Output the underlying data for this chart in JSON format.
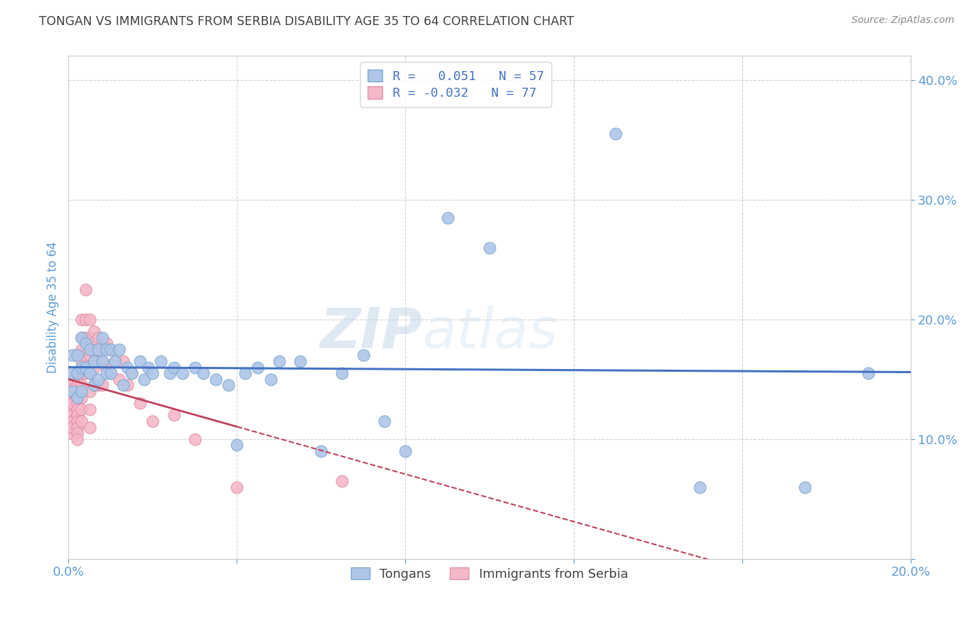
{
  "title": "TONGAN VS IMMIGRANTS FROM SERBIA DISABILITY AGE 35 TO 64 CORRELATION CHART",
  "source": "Source: ZipAtlas.com",
  "ylabel": "Disability Age 35 to 64",
  "xlim": [
    0.0,
    0.2
  ],
  "ylim": [
    0.0,
    0.42
  ],
  "xticks": [
    0.0,
    0.04,
    0.08,
    0.12,
    0.16,
    0.2
  ],
  "yticks": [
    0.0,
    0.1,
    0.2,
    0.3,
    0.4
  ],
  "ytick_labels": [
    "",
    "10.0%",
    "20.0%",
    "30.0%",
    "40.0%"
  ],
  "xtick_labels": [
    "0.0%",
    "",
    "",
    "",
    "",
    "20.0%"
  ],
  "legend_entries": [
    {
      "label": "R =   0.051   N = 57",
      "color": "#aec6e8"
    },
    {
      "label": "R = -0.032   N = 77",
      "color": "#f4b8c8"
    }
  ],
  "bottom_legend": [
    "Tongans",
    "Immigrants from Serbia"
  ],
  "watermark": "ZIPatlas",
  "blue_scatter_x": [
    0.001,
    0.001,
    0.001,
    0.002,
    0.002,
    0.002,
    0.003,
    0.003,
    0.003,
    0.004,
    0.004,
    0.005,
    0.005,
    0.006,
    0.006,
    0.007,
    0.007,
    0.008,
    0.008,
    0.009,
    0.009,
    0.01,
    0.01,
    0.011,
    0.012,
    0.013,
    0.014,
    0.015,
    0.017,
    0.018,
    0.019,
    0.02,
    0.022,
    0.024,
    0.025,
    0.027,
    0.03,
    0.032,
    0.035,
    0.038,
    0.04,
    0.042,
    0.045,
    0.048,
    0.05,
    0.055,
    0.06,
    0.065,
    0.07,
    0.075,
    0.08,
    0.09,
    0.1,
    0.13,
    0.15,
    0.175,
    0.19
  ],
  "blue_scatter_y": [
    0.14,
    0.155,
    0.17,
    0.135,
    0.155,
    0.17,
    0.14,
    0.16,
    0.185,
    0.16,
    0.18,
    0.155,
    0.175,
    0.145,
    0.165,
    0.15,
    0.175,
    0.165,
    0.185,
    0.155,
    0.175,
    0.155,
    0.175,
    0.165,
    0.175,
    0.145,
    0.16,
    0.155,
    0.165,
    0.15,
    0.16,
    0.155,
    0.165,
    0.155,
    0.16,
    0.155,
    0.16,
    0.155,
    0.15,
    0.145,
    0.095,
    0.155,
    0.16,
    0.15,
    0.165,
    0.165,
    0.09,
    0.155,
    0.17,
    0.115,
    0.09,
    0.285,
    0.26,
    0.355,
    0.06,
    0.06,
    0.155
  ],
  "pink_scatter_x": [
    0.0,
    0.0,
    0.0,
    0.0,
    0.0,
    0.0,
    0.0,
    0.001,
    0.001,
    0.001,
    0.001,
    0.001,
    0.001,
    0.001,
    0.001,
    0.001,
    0.001,
    0.001,
    0.001,
    0.002,
    0.002,
    0.002,
    0.002,
    0.002,
    0.002,
    0.002,
    0.002,
    0.002,
    0.002,
    0.002,
    0.002,
    0.003,
    0.003,
    0.003,
    0.003,
    0.003,
    0.003,
    0.003,
    0.003,
    0.003,
    0.004,
    0.004,
    0.004,
    0.004,
    0.004,
    0.005,
    0.005,
    0.005,
    0.005,
    0.005,
    0.005,
    0.005,
    0.006,
    0.006,
    0.006,
    0.006,
    0.007,
    0.007,
    0.007,
    0.008,
    0.008,
    0.008,
    0.009,
    0.009,
    0.01,
    0.01,
    0.011,
    0.012,
    0.013,
    0.014,
    0.015,
    0.017,
    0.02,
    0.025,
    0.03,
    0.04,
    0.065
  ],
  "pink_scatter_y": [
    0.13,
    0.135,
    0.125,
    0.12,
    0.115,
    0.11,
    0.105,
    0.145,
    0.14,
    0.135,
    0.13,
    0.125,
    0.12,
    0.115,
    0.11,
    0.13,
    0.14,
    0.145,
    0.15,
    0.155,
    0.15,
    0.145,
    0.14,
    0.135,
    0.13,
    0.125,
    0.12,
    0.115,
    0.11,
    0.105,
    0.1,
    0.2,
    0.185,
    0.175,
    0.165,
    0.155,
    0.145,
    0.135,
    0.125,
    0.115,
    0.225,
    0.2,
    0.185,
    0.17,
    0.155,
    0.2,
    0.185,
    0.17,
    0.155,
    0.14,
    0.125,
    0.11,
    0.19,
    0.175,
    0.16,
    0.145,
    0.185,
    0.165,
    0.145,
    0.18,
    0.165,
    0.145,
    0.18,
    0.16,
    0.175,
    0.155,
    0.165,
    0.15,
    0.165,
    0.145,
    0.155,
    0.13,
    0.115,
    0.12,
    0.1,
    0.06,
    0.065
  ],
  "blue_line_color": "#4472c4",
  "pink_line_color": "#c0405a",
  "scatter_blue_color": "#aec6e8",
  "scatter_pink_color": "#f4b8c8",
  "scatter_blue_edge": "#7aa8d0",
  "scatter_pink_edge": "#e090a8",
  "background_color": "#ffffff",
  "grid_color": "#cccccc",
  "title_color": "#404040",
  "axis_label_color": "#5b9bd5",
  "tick_color": "#5b9bd5"
}
